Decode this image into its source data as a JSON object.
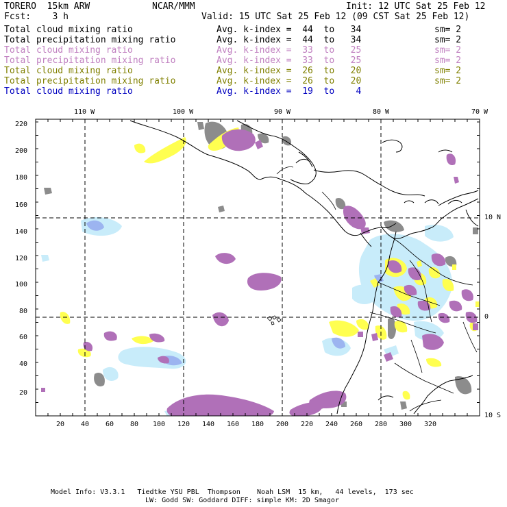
{
  "header": {
    "model": "TORERO  15km ARW",
    "org": "NCAR/MMM",
    "init": "Init: 12 UTC Sat 25 Feb 12",
    "fcst": "Fcst:    3 h",
    "valid": "Valid: 15 UTC Sat 25 Feb 12 (09 CST Sat 25 Feb 12)"
  },
  "legend": [
    {
      "field": "Total cloud mixing ratio",
      "avg": "Avg. k-index =  44  to   34",
      "sm": "sm= 2",
      "color": "#000000"
    },
    {
      "field": "Total precipitation mixing ratio",
      "avg": "Avg. k-index =  44  to   34",
      "sm": "sm= 2",
      "color": "#000000"
    },
    {
      "field": "Total cloud mixing ratio",
      "avg": "Avg. k-index =  33  to   25",
      "sm": "sm= 2",
      "color": "#c080c0"
    },
    {
      "field": "Total precipitation mixing ratio",
      "avg": "Avg. k-index =  33  to   25",
      "sm": "sm= 2",
      "color": "#c080c0"
    },
    {
      "field": "Total cloud mixing ratio",
      "avg": "Avg. k-index =  26  to   20",
      "sm": "sm= 2",
      "color": "#808000"
    },
    {
      "field": "Total precipitation mixing ratio",
      "avg": "Avg. k-index =  26  to   20",
      "sm": "sm= 2",
      "color": "#808000"
    },
    {
      "field": "Total cloud mixing ratio",
      "avg": "Avg. k-index =  19  to    4",
      "sm": "",
      "color": "#0000c0"
    }
  ],
  "map": {
    "lon_labels": [
      "110 W",
      "100 W",
      "90 W",
      "80 W",
      "70 W"
    ],
    "lat_labels": [
      "10 N",
      "0",
      "10 S"
    ],
    "grid_x_ticks": [
      "20",
      "40",
      "60",
      "80",
      "100",
      "120",
      "140",
      "160",
      "180",
      "200",
      "220",
      "240",
      "260",
      "280",
      "300",
      "320"
    ],
    "grid_y_ticks": [
      "20",
      "40",
      "60",
      "80",
      "100",
      "120",
      "140",
      "160",
      "180",
      "200",
      "220"
    ],
    "colors": {
      "gray": "#8c8c8c",
      "purple": "#b070b8",
      "yellow": "#ffff50",
      "lightblue": "#c8ecfa",
      "blue": "#9cb4f0"
    }
  },
  "footer": {
    "line1": "Model Info: V3.3.1   Tiedtke YSU PBL  Thompson    Noah LSM  15 km,   44 levels,  173 sec",
    "line2": "LW: Godd SW: Goddard DIFF: simple KM: 2D Smagor"
  }
}
